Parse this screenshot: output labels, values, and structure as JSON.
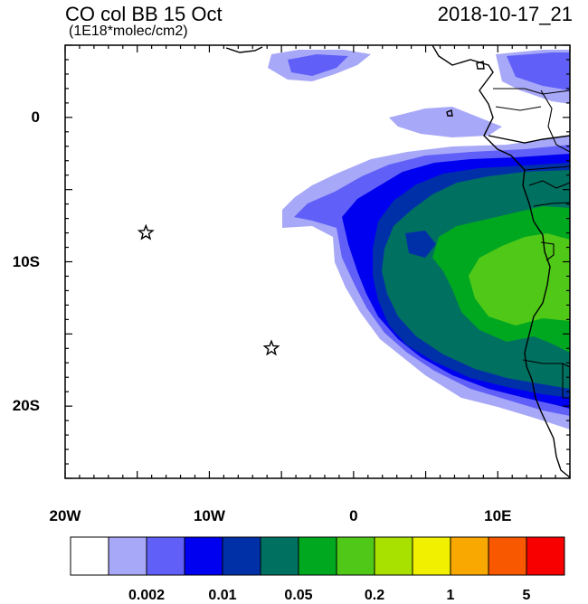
{
  "title": "CO col BB 15 Oct",
  "units": "(1E18*molec/cm2)",
  "datetime": "2018-10-17_21",
  "lon_labels": [
    {
      "lon": -20,
      "text": "20W"
    },
    {
      "lon": -10,
      "text": "10W"
    },
    {
      "lon": 0,
      "text": "0"
    },
    {
      "lon": 10,
      "text": "10E"
    }
  ],
  "lat_labels": [
    {
      "lat": 0,
      "text": "0"
    },
    {
      "lat": -10,
      "text": "10S"
    },
    {
      "lat": -20,
      "text": "20S"
    }
  ],
  "domain": {
    "lon": [
      -20,
      15
    ],
    "lat": [
      -25,
      5
    ]
  },
  "colorbar": {
    "colors": [
      "#ffffff",
      "#a8a8f8",
      "#6060f8",
      "#0000f0",
      "#0030a8",
      "#007060",
      "#00a820",
      "#50c818",
      "#a8e000",
      "#f0f000",
      "#f8a800",
      "#f85800",
      "#f80000"
    ],
    "labels": [
      {
        "after_box": 1,
        "text": "0.002"
      },
      {
        "after_box": 3,
        "text": "0.01"
      },
      {
        "after_box": 5,
        "text": "0.05"
      },
      {
        "after_box": 7,
        "text": "0.2"
      },
      {
        "after_box": 9,
        "text": "1"
      },
      {
        "after_box": 11,
        "text": "5"
      }
    ]
  },
  "markers": [
    {
      "lon": -14.4,
      "lat": -8.0,
      "symbol": "star"
    },
    {
      "lon": -5.7,
      "lat": -16.0,
      "symbol": "star"
    }
  ]
}
